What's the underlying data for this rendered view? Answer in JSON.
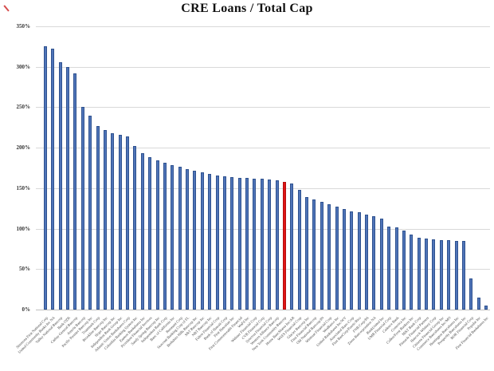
{
  "chart_data": {
    "type": "bar",
    "title": "CRE Loans / Total Cap",
    "xlabel": "",
    "ylabel": "",
    "ylim": [
      0,
      350
    ],
    "ytick_step": 50,
    "ytick_labels": [
      "0%",
      "50%",
      "100%",
      "150%",
      "200%",
      "250%",
      "300%",
      "350%"
    ],
    "grid": true,
    "legend_position": "none",
    "bar_color": "#4f74b8",
    "bar_edge_color": "#2f528f",
    "highlight_color": "#e01414",
    "highlight_index": 32,
    "categories": [
      "Simmons First National Corp",
      "United Community Banks Inc NA",
      "Valley National Bancorp",
      "Bank OZK",
      "Cathay General Bancorp",
      "Ameris Bancorp",
      "Pacific Premier Bancorp Inc",
      "Trustmark Corp",
      "Brookline Bancorp Inc",
      "Hope Bancorp Inc",
      "Independent Bank Group Inc",
      "Atlantic Union Bankshares Corp",
      "Columbia Banking System Inc",
      "Eastern Bankshares Inc",
      "Provident Financial Services",
      "Sandy Spring Bancorp Inc",
      "Independent Bank Corp",
      "Banc of California Inc",
      "Renasant Corp",
      "Seacoast Banking Corp of FL",
      "Berkshire Hills Bancorp Inc",
      "S&T Bancorp Inc",
      "NBT Bancorp Inc",
      "Fulton Financial Corp",
      "Bank of Hawaii Corp",
      "First Hawaiian Inc",
      "First Commonwealth Financial",
      "WaFd Inc",
      "Webster Financial Corp",
      "CVB Financial Corp",
      "Synovus Financial Corp",
      "Western Alliance Bancorp",
      "New York Community Bancorp",
      "Home BancShares Inc/AR",
      "WSFS Financial Corp",
      "Glacier Bancorp Inc",
      "First Financial Bancorp",
      "Old National Bancorp/IN",
      "Wintrust Financial Corp",
      "WesBanco Inc",
      "United Bankshares Inc/WV",
      "Associated Banc-Corp",
      "First BanCorp/Puerto Rico",
      "FNB Corp/PA",
      "Zions Bancorporation NA",
      "BankUnited Inc",
      "UMB Financial Corp",
      "Cadence Bank",
      "Comerica Inc",
      "Cullen/Frost Bankers Inc",
      "M&T Bank Corp",
      "Pinnacle Financial Partners",
      "Hancock Whitney Corp",
      "Citizens Financial Group Inc",
      "Commerce Bancshares Inc/MO",
      "Huntington Bancshares Inc",
      "Prosperity Bancshares Inc",
      "BOK Financial Corp",
      "Popular Inc",
      "First Financial Bankshares Inc"
    ],
    "values": [
      325,
      322,
      306,
      300,
      292,
      250,
      240,
      227,
      222,
      218,
      216,
      214,
      202,
      193,
      188,
      184,
      181,
      178,
      176,
      174,
      172,
      170,
      168,
      166,
      165,
      164,
      163,
      163,
      162,
      162,
      161,
      160,
      158,
      156,
      148,
      139,
      136,
      133,
      130,
      127,
      124,
      121,
      120,
      117,
      115,
      112,
      103,
      102,
      98,
      93,
      89,
      88,
      87,
      86,
      86,
      85,
      85,
      38,
      15,
      5
    ]
  }
}
